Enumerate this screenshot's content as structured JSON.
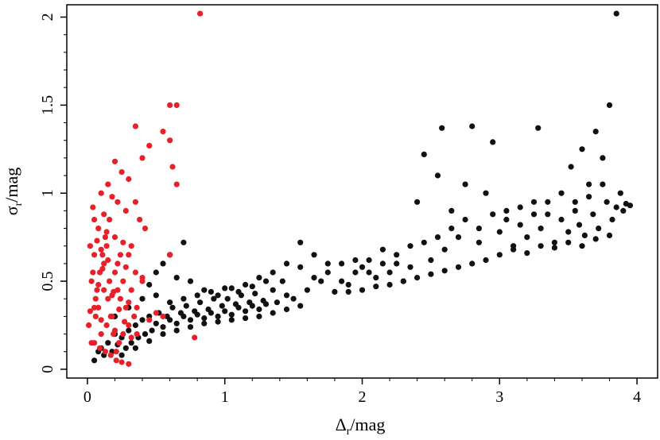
{
  "chart_data": {
    "type": "scatter",
    "title": "",
    "xlabel": {
      "main": "Δ",
      "sub": "r",
      "unit": "/mag"
    },
    "ylabel": {
      "main": "σ",
      "sub": "r",
      "unit": "/mag"
    },
    "xlim": [
      -0.15,
      4.15
    ],
    "ylim": [
      -0.05,
      2.07
    ],
    "xticks": [
      0,
      1,
      2,
      3,
      4
    ],
    "xtick_labels": [
      "0",
      "1",
      "2",
      "3",
      "4"
    ],
    "yticks": [
      0,
      0.5,
      1,
      1.5,
      2
    ],
    "ytick_labels": [
      "0",
      "0.5",
      "1",
      "1.5",
      "2"
    ],
    "grid": false,
    "legend": "none",
    "colors": {
      "black_series": "#111111",
      "red_series": "#e8202a"
    },
    "series": [
      {
        "color": "#111111",
        "points": [
          [
            0.05,
            0.05
          ],
          [
            0.08,
            0.1
          ],
          [
            0.1,
            0.12
          ],
          [
            0.12,
            0.08
          ],
          [
            0.15,
            0.15
          ],
          [
            0.18,
            0.1
          ],
          [
            0.2,
            0.2
          ],
          [
            0.22,
            0.14
          ],
          [
            0.25,
            0.18
          ],
          [
            0.28,
            0.12
          ],
          [
            0.3,
            0.22
          ],
          [
            0.32,
            0.15
          ],
          [
            0.35,
            0.25
          ],
          [
            0.37,
            0.18
          ],
          [
            0.4,
            0.28
          ],
          [
            0.42,
            0.2
          ],
          [
            0.45,
            0.3
          ],
          [
            0.47,
            0.22
          ],
          [
            0.5,
            0.26
          ],
          [
            0.52,
            0.32
          ],
          [
            0.55,
            0.24
          ],
          [
            0.58,
            0.3
          ],
          [
            0.6,
            0.28
          ],
          [
            0.62,
            0.35
          ],
          [
            0.65,
            0.26
          ],
          [
            0.68,
            0.32
          ],
          [
            0.7,
            0.3
          ],
          [
            0.72,
            0.36
          ],
          [
            0.75,
            0.28
          ],
          [
            0.78,
            0.33
          ],
          [
            0.8,
            0.31
          ],
          [
            0.82,
            0.38
          ],
          [
            0.85,
            0.29
          ],
          [
            0.88,
            0.34
          ],
          [
            0.9,
            0.32
          ],
          [
            0.92,
            0.4
          ],
          [
            0.95,
            0.3
          ],
          [
            0.98,
            0.36
          ],
          [
            1.0,
            0.33
          ],
          [
            1.02,
            0.4
          ],
          [
            1.05,
            0.31
          ],
          [
            1.08,
            0.37
          ],
          [
            1.1,
            0.35
          ],
          [
            1.12,
            0.42
          ],
          [
            1.15,
            0.33
          ],
          [
            1.18,
            0.38
          ],
          [
            1.2,
            0.36
          ],
          [
            1.22,
            0.43
          ],
          [
            1.25,
            0.34
          ],
          [
            1.28,
            0.39
          ],
          [
            1.3,
            0.37
          ],
          [
            1.35,
            0.45
          ],
          [
            1.38,
            0.38
          ],
          [
            1.42,
            0.5
          ],
          [
            1.45,
            0.42
          ],
          [
            1.5,
            0.4
          ],
          [
            1.55,
            0.72
          ],
          [
            1.6,
            0.45
          ],
          [
            1.65,
            0.65
          ],
          [
            1.7,
            0.5
          ],
          [
            1.75,
            0.55
          ],
          [
            1.8,
            0.44
          ],
          [
            1.85,
            0.6
          ],
          [
            1.9,
            0.48
          ],
          [
            1.95,
            0.55
          ],
          [
            2.0,
            0.58
          ],
          [
            2.05,
            0.62
          ],
          [
            2.1,
            0.52
          ],
          [
            2.15,
            0.68
          ],
          [
            2.2,
            0.55
          ],
          [
            2.25,
            0.6
          ],
          [
            2.3,
            0.5
          ],
          [
            2.35,
            0.58
          ],
          [
            2.4,
            0.95
          ],
          [
            2.45,
            1.22
          ],
          [
            2.5,
            0.62
          ],
          [
            2.55,
            1.1
          ],
          [
            2.58,
            1.37
          ],
          [
            2.6,
            0.68
          ],
          [
            2.65,
            0.9
          ],
          [
            2.7,
            0.75
          ],
          [
            2.75,
            1.05
          ],
          [
            2.8,
            1.38
          ],
          [
            2.85,
            0.8
          ],
          [
            2.9,
            1.0
          ],
          [
            2.95,
            1.29
          ],
          [
            3.0,
            0.78
          ],
          [
            3.05,
            0.85
          ],
          [
            3.1,
            0.7
          ],
          [
            3.15,
            0.92
          ],
          [
            3.2,
            0.75
          ],
          [
            3.25,
            0.88
          ],
          [
            3.28,
            1.37
          ],
          [
            3.3,
            0.8
          ],
          [
            3.35,
            0.95
          ],
          [
            3.4,
            0.72
          ],
          [
            3.45,
            0.85
          ],
          [
            3.5,
            0.78
          ],
          [
            3.52,
            1.15
          ],
          [
            3.55,
            0.9
          ],
          [
            3.58,
            0.82
          ],
          [
            3.6,
            1.25
          ],
          [
            3.62,
            0.76
          ],
          [
            3.65,
            1.05
          ],
          [
            3.68,
            0.88
          ],
          [
            3.7,
            1.35
          ],
          [
            3.72,
            0.8
          ],
          [
            3.75,
            1.2
          ],
          [
            3.78,
            0.95
          ],
          [
            3.8,
            1.5
          ],
          [
            3.82,
            0.85
          ],
          [
            3.85,
            2.02
          ],
          [
            3.88,
            1.0
          ],
          [
            3.9,
            0.9
          ],
          [
            3.92,
            0.94
          ],
          [
            0.6,
            0.65
          ],
          [
            0.7,
            0.72
          ],
          [
            0.5,
            0.55
          ],
          [
            0.45,
            0.48
          ],
          [
            0.55,
            0.6
          ],
          [
            0.65,
            0.52
          ],
          [
            0.75,
            0.5
          ],
          [
            0.85,
            0.45
          ],
          [
            0.95,
            0.42
          ],
          [
            1.05,
            0.46
          ],
          [
            1.15,
            0.48
          ],
          [
            1.25,
            0.52
          ],
          [
            1.35,
            0.55
          ],
          [
            1.45,
            0.6
          ],
          [
            1.55,
            0.58
          ],
          [
            1.65,
            0.52
          ],
          [
            1.75,
            0.6
          ],
          [
            1.85,
            0.5
          ],
          [
            1.95,
            0.62
          ],
          [
            2.05,
            0.55
          ],
          [
            2.15,
            0.6
          ],
          [
            2.25,
            0.65
          ],
          [
            2.35,
            0.7
          ],
          [
            2.45,
            0.72
          ],
          [
            2.55,
            0.75
          ],
          [
            2.65,
            0.8
          ],
          [
            2.75,
            0.85
          ],
          [
            2.85,
            0.72
          ],
          [
            2.95,
            0.88
          ],
          [
            3.05,
            0.9
          ],
          [
            3.15,
            0.82
          ],
          [
            3.25,
            0.95
          ],
          [
            3.35,
            0.88
          ],
          [
            3.45,
            1.0
          ],
          [
            3.55,
            0.95
          ],
          [
            3.65,
            0.98
          ],
          [
            3.75,
            1.05
          ],
          [
            3.85,
            0.92
          ],
          [
            3.95,
            0.93
          ],
          [
            0.2,
            0.3
          ],
          [
            0.3,
            0.35
          ],
          [
            0.4,
            0.4
          ],
          [
            0.5,
            0.42
          ],
          [
            0.6,
            0.38
          ],
          [
            0.7,
            0.4
          ],
          [
            0.8,
            0.42
          ],
          [
            0.9,
            0.44
          ],
          [
            1.0,
            0.46
          ],
          [
            1.1,
            0.44
          ],
          [
            1.2,
            0.47
          ],
          [
            1.3,
            0.5
          ],
          [
            0.25,
            0.08
          ],
          [
            0.35,
            0.12
          ],
          [
            0.45,
            0.16
          ],
          [
            0.55,
            0.2
          ],
          [
            0.65,
            0.22
          ],
          [
            0.75,
            0.24
          ],
          [
            0.85,
            0.26
          ],
          [
            0.95,
            0.27
          ],
          [
            1.05,
            0.28
          ],
          [
            1.15,
            0.29
          ],
          [
            1.25,
            0.3
          ],
          [
            1.35,
            0.32
          ],
          [
            1.45,
            0.34
          ],
          [
            1.55,
            0.36
          ],
          [
            3.0,
            0.65
          ],
          [
            3.1,
            0.68
          ],
          [
            3.2,
            0.66
          ],
          [
            3.3,
            0.7
          ],
          [
            3.4,
            0.69
          ],
          [
            3.5,
            0.72
          ],
          [
            3.6,
            0.7
          ],
          [
            3.7,
            0.74
          ],
          [
            3.8,
            0.76
          ],
          [
            2.9,
            0.62
          ],
          [
            2.8,
            0.6
          ],
          [
            2.7,
            0.58
          ],
          [
            2.6,
            0.56
          ],
          [
            2.5,
            0.54
          ],
          [
            2.4,
            0.52
          ],
          [
            2.3,
            0.5
          ],
          [
            2.2,
            0.48
          ],
          [
            2.1,
            0.47
          ],
          [
            2.0,
            0.45
          ],
          [
            1.9,
            0.44
          ]
        ]
      },
      {
        "color": "#e8202a",
        "points": [
          [
            0.82,
            2.02
          ],
          [
            0.6,
            1.5
          ],
          [
            0.65,
            1.5
          ],
          [
            0.35,
            1.38
          ],
          [
            0.55,
            1.35
          ],
          [
            0.6,
            1.3
          ],
          [
            0.45,
            1.27
          ],
          [
            0.4,
            1.2
          ],
          [
            0.62,
            1.15
          ],
          [
            0.65,
            1.05
          ],
          [
            0.2,
            1.18
          ],
          [
            0.25,
            1.12
          ],
          [
            0.3,
            1.08
          ],
          [
            0.15,
            1.05
          ],
          [
            0.1,
            1.0
          ],
          [
            0.18,
            0.98
          ],
          [
            0.22,
            0.95
          ],
          [
            0.28,
            0.9
          ],
          [
            0.12,
            0.88
          ],
          [
            0.05,
            0.85
          ],
          [
            0.08,
            0.8
          ],
          [
            0.14,
            0.78
          ],
          [
            0.2,
            0.75
          ],
          [
            0.26,
            0.72
          ],
          [
            0.32,
            0.7
          ],
          [
            0.1,
            0.68
          ],
          [
            0.05,
            0.65
          ],
          [
            0.15,
            0.62
          ],
          [
            0.22,
            0.6
          ],
          [
            0.28,
            0.58
          ],
          [
            0.35,
            0.55
          ],
          [
            0.4,
            0.52
          ],
          [
            0.03,
            0.5
          ],
          [
            0.08,
            0.48
          ],
          [
            0.12,
            0.45
          ],
          [
            0.18,
            0.42
          ],
          [
            0.24,
            0.4
          ],
          [
            0.3,
            0.38
          ],
          [
            0.36,
            0.35
          ],
          [
            0.02,
            0.33
          ],
          [
            0.06,
            0.3
          ],
          [
            0.1,
            0.28
          ],
          [
            0.14,
            0.25
          ],
          [
            0.2,
            0.22
          ],
          [
            0.26,
            0.2
          ],
          [
            0.32,
            0.18
          ],
          [
            0.05,
            0.15
          ],
          [
            0.09,
            0.12
          ],
          [
            0.13,
            0.1
          ],
          [
            0.17,
            0.08
          ],
          [
            0.21,
            0.05
          ],
          [
            0.25,
            0.04
          ],
          [
            0.3,
            0.03
          ],
          [
            0.04,
            0.92
          ],
          [
            0.07,
            0.73
          ],
          [
            0.11,
            0.57
          ],
          [
            0.16,
            0.5
          ],
          [
            0.19,
            0.44
          ],
          [
            0.23,
            0.34
          ],
          [
            0.27,
            0.27
          ],
          [
            0.6,
            0.65
          ],
          [
            0.4,
            0.5
          ],
          [
            0.45,
            0.28
          ],
          [
            0.5,
            0.32
          ],
          [
            0.55,
            0.3
          ],
          [
            0.78,
            0.18
          ],
          [
            0.35,
            0.95
          ],
          [
            0.38,
            0.85
          ],
          [
            0.42,
            0.8
          ],
          [
            0.3,
            0.65
          ],
          [
            0.02,
            0.7
          ],
          [
            0.04,
            0.55
          ],
          [
            0.06,
            0.4
          ],
          [
            0.08,
            0.35
          ],
          [
            0.1,
            0.2
          ],
          [
            0.12,
            0.6
          ],
          [
            0.14,
            0.7
          ],
          [
            0.16,
            0.85
          ],
          [
            0.18,
            0.3
          ],
          [
            0.2,
            0.55
          ],
          [
            0.22,
            0.45
          ],
          [
            0.24,
            0.65
          ],
          [
            0.26,
            0.5
          ],
          [
            0.28,
            0.35
          ],
          [
            0.3,
            0.25
          ],
          [
            0.32,
            0.45
          ],
          [
            0.34,
            0.3
          ],
          [
            0.36,
            0.2
          ],
          [
            0.01,
            0.25
          ],
          [
            0.03,
            0.15
          ],
          [
            0.05,
            0.35
          ],
          [
            0.07,
            0.45
          ],
          [
            0.09,
            0.55
          ],
          [
            0.11,
            0.65
          ],
          [
            0.13,
            0.75
          ],
          [
            0.15,
            0.4
          ],
          [
            0.17,
            0.3
          ],
          [
            0.19,
            0.2
          ],
          [
            0.21,
            0.1
          ],
          [
            0.23,
            0.15
          ]
        ]
      }
    ]
  }
}
